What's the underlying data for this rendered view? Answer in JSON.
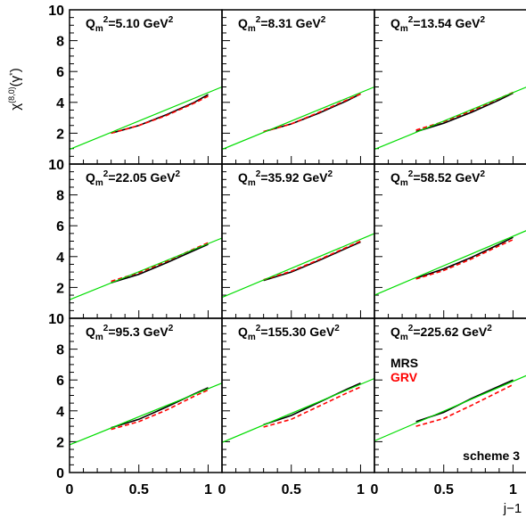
{
  "chart_data": {
    "type": "line",
    "ylabel": "χ^{(8,0)}(γ*)",
    "xlabel": "j−1",
    "xlim": [
      0,
      1.1
    ],
    "ylim": [
      0,
      10
    ],
    "x_ticks": [
      "0",
      "0.5",
      "1"
    ],
    "y_ticks": [
      "0",
      "2",
      "4",
      "6",
      "8",
      "10"
    ],
    "grid": false,
    "layout": "3x3 panels sharing axes",
    "legend": {
      "position": "inside bottom-right panel, right side",
      "entries": [
        {
          "name": "MRS",
          "color": "#000000"
        },
        {
          "name": "GRV",
          "color": "#ff0000"
        }
      ]
    },
    "annotation": "scheme 3",
    "panels": [
      {
        "qm2": "5.10",
        "series": [
          {
            "name": "MRS",
            "style": "solid",
            "color": "#000000",
            "x": [
              0.3,
              0.5,
              0.7,
              0.9,
              1.0
            ],
            "y": [
              2.0,
              2.5,
              3.2,
              4.0,
              4.5
            ]
          },
          {
            "name": "GRV",
            "style": "dashed",
            "color": "#ff0000",
            "x": [
              0.3,
              0.5,
              0.7,
              0.9,
              1.0
            ],
            "y": [
              2.0,
              2.5,
              3.15,
              3.95,
              4.4
            ]
          },
          {
            "name": "fit",
            "style": "solid",
            "color": "#00dd00",
            "x": [
              0.0,
              1.1
            ],
            "y": [
              0.95,
              5.0
            ]
          }
        ]
      },
      {
        "qm2": "8.31",
        "series": [
          {
            "name": "MRS",
            "style": "solid",
            "color": "#000000",
            "x": [
              0.3,
              0.5,
              0.7,
              0.9,
              1.0
            ],
            "y": [
              2.1,
              2.6,
              3.3,
              4.1,
              4.55
            ]
          },
          {
            "name": "GRV",
            "style": "dashed",
            "color": "#ff0000",
            "x": [
              0.3,
              0.5,
              0.7,
              0.9,
              1.0
            ],
            "y": [
              2.1,
              2.6,
              3.35,
              4.15,
              4.55
            ]
          },
          {
            "name": "fit",
            "style": "solid",
            "color": "#00dd00",
            "x": [
              0.0,
              1.1
            ],
            "y": [
              0.95,
              5.0
            ]
          }
        ]
      },
      {
        "qm2": "13.54",
        "series": [
          {
            "name": "MRS",
            "style": "solid",
            "color": "#000000",
            "x": [
              0.3,
              0.5,
              0.7,
              0.9,
              1.0
            ],
            "y": [
              2.1,
              2.65,
              3.35,
              4.15,
              4.6
            ]
          },
          {
            "name": "GRV",
            "style": "dashed",
            "color": "#ff0000",
            "x": [
              0.3,
              0.5,
              0.7,
              0.9,
              1.0
            ],
            "y": [
              2.2,
              2.75,
              3.45,
              4.25,
              4.65
            ]
          },
          {
            "name": "fit",
            "style": "solid",
            "color": "#00dd00",
            "x": [
              0.0,
              1.1
            ],
            "y": [
              0.95,
              5.0
            ]
          }
        ]
      },
      {
        "qm2": "22.05",
        "series": [
          {
            "name": "MRS",
            "style": "solid",
            "color": "#000000",
            "x": [
              0.3,
              0.5,
              0.7,
              0.9,
              1.0
            ],
            "y": [
              2.3,
              2.85,
              3.6,
              4.4,
              4.8
            ]
          },
          {
            "name": "GRV",
            "style": "dashed",
            "color": "#ff0000",
            "x": [
              0.3,
              0.5,
              0.7,
              0.9,
              1.0
            ],
            "y": [
              2.4,
              2.95,
              3.7,
              4.5,
              4.9
            ]
          },
          {
            "name": "fit",
            "style": "solid",
            "color": "#00dd00",
            "x": [
              0.0,
              1.1
            ],
            "y": [
              1.2,
              5.2
            ]
          }
        ]
      },
      {
        "qm2": "35.92",
        "series": [
          {
            "name": "MRS",
            "style": "solid",
            "color": "#000000",
            "x": [
              0.3,
              0.5,
              0.7,
              0.9,
              1.0
            ],
            "y": [
              2.45,
              3.0,
              3.75,
              4.55,
              4.95
            ]
          },
          {
            "name": "GRV",
            "style": "dashed",
            "color": "#ff0000",
            "x": [
              0.3,
              0.5,
              0.7,
              0.9,
              1.0
            ],
            "y": [
              2.5,
              3.05,
              3.8,
              4.6,
              5.0
            ]
          },
          {
            "name": "fit",
            "style": "solid",
            "color": "#00dd00",
            "x": [
              0.0,
              1.1
            ],
            "y": [
              1.35,
              5.5
            ]
          }
        ]
      },
      {
        "qm2": "58.52",
        "series": [
          {
            "name": "MRS",
            "style": "solid",
            "color": "#000000",
            "x": [
              0.3,
              0.5,
              0.7,
              0.9,
              1.0
            ],
            "y": [
              2.6,
              3.2,
              3.95,
              4.8,
              5.25
            ]
          },
          {
            "name": "GRV",
            "style": "dashed",
            "color": "#ff0000",
            "x": [
              0.3,
              0.5,
              0.7,
              0.9,
              1.0
            ],
            "y": [
              2.55,
              3.1,
              3.85,
              4.7,
              5.1
            ]
          },
          {
            "name": "fit",
            "style": "solid",
            "color": "#00dd00",
            "x": [
              0.0,
              1.1
            ],
            "y": [
              1.5,
              5.7
            ]
          }
        ]
      },
      {
        "qm2": "95.3",
        "series": [
          {
            "name": "MRS",
            "style": "solid",
            "color": "#000000",
            "x": [
              0.3,
              0.5,
              0.7,
              0.9,
              1.0
            ],
            "y": [
              2.9,
              3.45,
              4.25,
              5.1,
              5.5
            ]
          },
          {
            "name": "GRV",
            "style": "dashed",
            "color": "#ff0000",
            "x": [
              0.3,
              0.5,
              0.7,
              0.9,
              1.0
            ],
            "y": [
              2.8,
              3.3,
              4.05,
              4.95,
              5.35
            ]
          },
          {
            "name": "fit",
            "style": "solid",
            "color": "#00dd00",
            "x": [
              0.0,
              1.1
            ],
            "y": [
              1.8,
              5.8
            ]
          }
        ]
      },
      {
        "qm2": "155.30",
        "series": [
          {
            "name": "MRS",
            "style": "solid",
            "color": "#000000",
            "x": [
              0.3,
              0.5,
              0.7,
              0.9,
              1.0
            ],
            "y": [
              3.1,
              3.7,
              4.55,
              5.4,
              5.8
            ]
          },
          {
            "name": "GRV",
            "style": "dashed",
            "color": "#ff0000",
            "x": [
              0.3,
              0.5,
              0.7,
              0.9,
              1.0
            ],
            "y": [
              2.95,
              3.45,
              4.3,
              5.15,
              5.55
            ]
          },
          {
            "name": "fit",
            "style": "solid",
            "color": "#00dd00",
            "x": [
              0.0,
              1.1
            ],
            "y": [
              1.95,
              6.1
            ]
          }
        ]
      },
      {
        "qm2": "225.62",
        "series": [
          {
            "name": "MRS",
            "style": "solid",
            "color": "#000000",
            "x": [
              0.3,
              0.5,
              0.7,
              0.9,
              1.0
            ],
            "y": [
              3.3,
              3.9,
              4.8,
              5.6,
              6.0
            ]
          },
          {
            "name": "GRV",
            "style": "dashed",
            "color": "#ff0000",
            "x": [
              0.3,
              0.5,
              0.7,
              0.9,
              1.0
            ],
            "y": [
              3.0,
              3.5,
              4.35,
              5.25,
              5.7
            ]
          },
          {
            "name": "fit",
            "style": "solid",
            "color": "#00dd00",
            "x": [
              0.0,
              1.1
            ],
            "y": [
              2.05,
              6.3
            ]
          }
        ]
      }
    ]
  }
}
